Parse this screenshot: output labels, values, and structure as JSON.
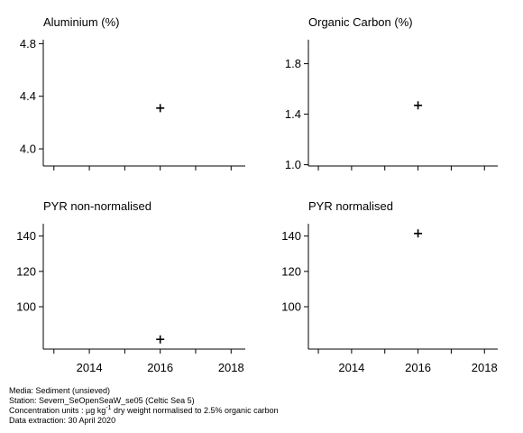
{
  "chart_data": [
    {
      "type": "scatter",
      "title": "Aluminium (%)",
      "points": [
        {
          "x": 2016,
          "y": 4.31
        }
      ],
      "xlim": [
        2012.7,
        2018.4
      ],
      "ylim": [
        3.87,
        4.83
      ],
      "yticks": [
        4.0,
        4.4,
        4.8
      ],
      "ytick_labels": [
        "4.0",
        "4.4",
        "4.8"
      ],
      "xticks": [
        2013,
        2014,
        2015,
        2016,
        2017,
        2018
      ],
      "xtick_labels": [],
      "marker": "plus",
      "grid": false
    },
    {
      "type": "scatter",
      "title": "Organic Carbon (%)",
      "points": [
        {
          "x": 2016,
          "y": 1.47
        }
      ],
      "xlim": [
        2012.7,
        2018.4
      ],
      "ylim": [
        0.99,
        1.99
      ],
      "yticks": [
        1.0,
        1.4,
        1.8
      ],
      "ytick_labels": [
        "1.0",
        "1.4",
        "1.8"
      ],
      "xticks": [
        2013,
        2014,
        2015,
        2016,
        2017,
        2018
      ],
      "xtick_labels": [],
      "marker": "plus",
      "grid": false
    },
    {
      "type": "scatter",
      "title": "PYR non-normalised",
      "points": [
        {
          "x": 2016,
          "y": 81.5
        }
      ],
      "xlim": [
        2012.7,
        2018.4
      ],
      "ylim": [
        76,
        147
      ],
      "yticks": [
        100,
        120,
        140
      ],
      "ytick_labels": [
        "100",
        "120",
        "140"
      ],
      "xticks": [
        2013,
        2014,
        2015,
        2016,
        2017,
        2018
      ],
      "xtick_labels": [
        "2014",
        "2016",
        "2018"
      ],
      "xtick_label_values": [
        2014,
        2016,
        2018
      ],
      "marker": "plus",
      "grid": false
    },
    {
      "type": "scatter",
      "title": "PYR normalised",
      "points": [
        {
          "x": 2016,
          "y": 141.5
        }
      ],
      "xlim": [
        2012.7,
        2018.4
      ],
      "ylim": [
        76,
        147
      ],
      "yticks": [
        100,
        120,
        140
      ],
      "ytick_labels": [
        "100",
        "120",
        "140"
      ],
      "xticks": [
        2013,
        2014,
        2015,
        2016,
        2017,
        2018
      ],
      "xtick_labels": [
        "2014",
        "2016",
        "2018"
      ],
      "xtick_label_values": [
        2014,
        2016,
        2018
      ],
      "marker": "plus",
      "grid": false
    }
  ],
  "footer": {
    "media": "Media: Sediment (unsieved)",
    "station": "Station: Severn_SeOpenSeaW_se05 (Celtic Sea 5)",
    "units_prefix": "Concentration units : µg kg",
    "units_exponent": "-1",
    "units_suffix": " dry weight normalised to 2.5% organic carbon",
    "extraction": "Data extraction: 30 April 2020"
  }
}
